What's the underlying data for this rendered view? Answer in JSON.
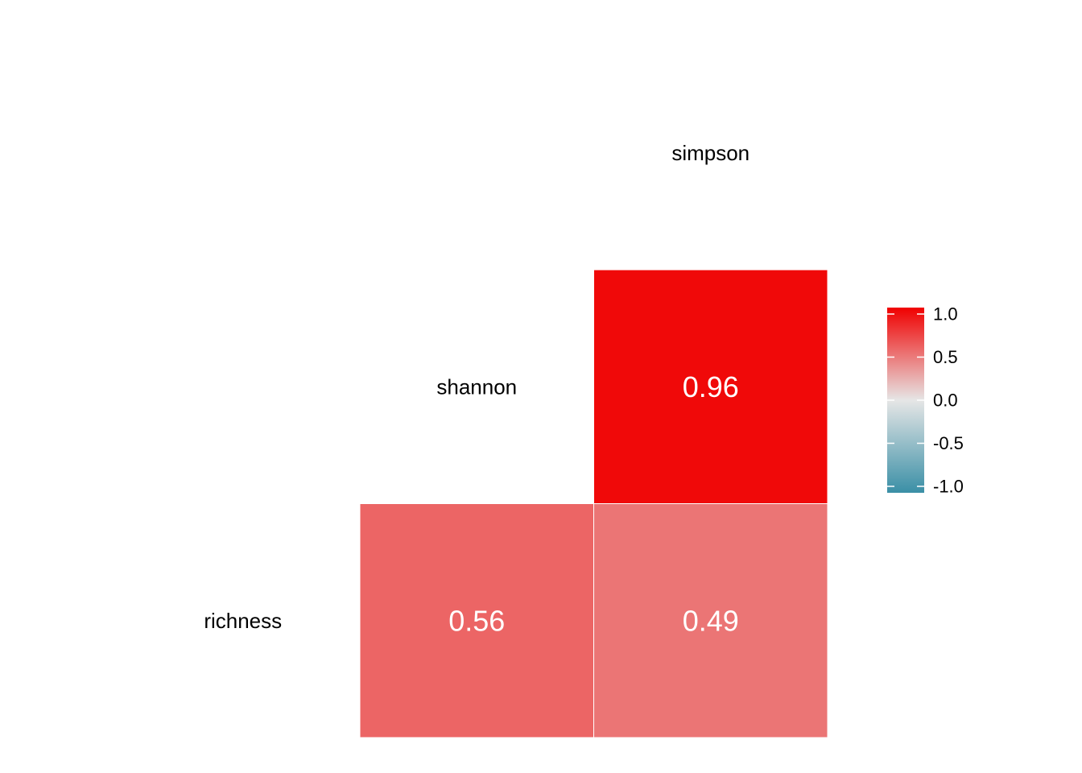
{
  "chart_data": {
    "type": "heatmap",
    "variables": [
      "richness",
      "shannon",
      "simpson"
    ],
    "cells": [
      {
        "row": "richness",
        "col": "shannon",
        "value": 0.56,
        "label": "0.56"
      },
      {
        "row": "richness",
        "col": "simpson",
        "value": 0.49,
        "label": "0.49"
      },
      {
        "row": "shannon",
        "col": "simpson",
        "value": 0.96,
        "label": "0.96"
      }
    ],
    "colorbar": {
      "range": [
        -1.0,
        1.0
      ],
      "ticks": [
        {
          "value": 1.0,
          "label": "1.0"
        },
        {
          "value": 0.5,
          "label": "0.5"
        },
        {
          "value": 0.0,
          "label": "0.0"
        },
        {
          "value": -0.5,
          "label": "-0.5"
        },
        {
          "value": -1.0,
          "label": "-1.0"
        }
      ],
      "colors": {
        "low": "#3a8fa6",
        "mid": "#e6e6e6",
        "high": "#f00000"
      }
    },
    "legend_position": "right"
  }
}
